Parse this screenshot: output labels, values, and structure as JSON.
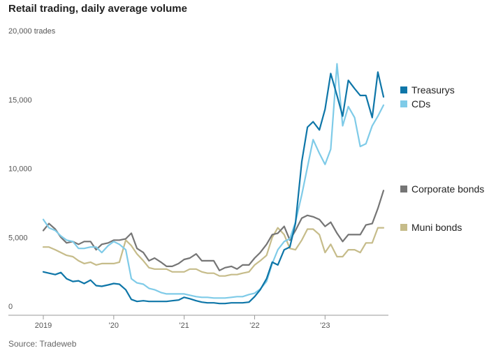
{
  "chart_data": {
    "type": "line",
    "title": "Retail trading, daily average volume",
    "source": "Source: Tradeweb",
    "ylim": [
      0,
      20000
    ],
    "y_ticks": [
      0,
      5000,
      10000,
      15000,
      20000
    ],
    "y_tick_labels": [
      "0",
      "5,000",
      "10,000",
      "15,000",
      "20,000 trades"
    ],
    "x_ticks": [
      2019,
      2020,
      2021,
      2022,
      2023
    ],
    "x_tick_labels": [
      "2019",
      "'20",
      "'21",
      "'22",
      "'23"
    ],
    "xlim": [
      2019,
      2023.86
    ],
    "grid": false,
    "legend_placement": "right, next to line ends",
    "series": [
      {
        "name": "Treasurys",
        "color": "#0e76a8",
        "x": [
          2019.0,
          2019.08,
          2019.17,
          2019.25,
          2019.33,
          2019.42,
          2019.5,
          2019.58,
          2019.67,
          2019.75,
          2019.83,
          2019.92,
          2020.0,
          2020.08,
          2020.17,
          2020.25,
          2020.33,
          2020.42,
          2020.5,
          2020.58,
          2020.67,
          2020.75,
          2020.83,
          2020.92,
          2021.0,
          2021.08,
          2021.17,
          2021.25,
          2021.33,
          2021.42,
          2021.5,
          2021.58,
          2021.67,
          2021.75,
          2021.83,
          2021.92,
          2022.0,
          2022.08,
          2022.17,
          2022.25,
          2022.33,
          2022.42,
          2022.5,
          2022.58,
          2022.67,
          2022.75,
          2022.83,
          2022.92,
          2023.0,
          2023.08,
          2023.17,
          2023.25,
          2023.33,
          2023.42,
          2023.5,
          2023.58,
          2023.67,
          2023.75,
          2023.83
        ],
        "values": [
          3000,
          2900,
          2800,
          2950,
          2500,
          2300,
          2350,
          2150,
          2400,
          2000,
          1950,
          2050,
          2150,
          2100,
          1700,
          1000,
          850,
          900,
          850,
          850,
          850,
          850,
          900,
          950,
          1150,
          1050,
          900,
          800,
          750,
          750,
          700,
          700,
          750,
          750,
          750,
          800,
          1200,
          1700,
          2500,
          3700,
          3500,
          4600,
          4800,
          6500,
          11000,
          13500,
          13900,
          13300,
          14800,
          17400,
          15800,
          14300,
          16900,
          16300,
          15800,
          15800,
          14200,
          17500,
          15700
        ]
      },
      {
        "name": "CDs",
        "color": "#7fcbe8",
        "x": [
          2019.0,
          2019.08,
          2019.17,
          2019.25,
          2019.33,
          2019.42,
          2019.5,
          2019.58,
          2019.67,
          2019.75,
          2019.83,
          2019.92,
          2020.0,
          2020.08,
          2020.17,
          2020.25,
          2020.33,
          2020.42,
          2020.5,
          2020.58,
          2020.67,
          2020.75,
          2020.83,
          2020.92,
          2021.0,
          2021.08,
          2021.17,
          2021.25,
          2021.33,
          2021.42,
          2021.5,
          2021.58,
          2021.67,
          2021.75,
          2021.83,
          2021.92,
          2022.0,
          2022.08,
          2022.17,
          2022.25,
          2022.33,
          2022.42,
          2022.5,
          2022.58,
          2022.67,
          2022.75,
          2022.83,
          2022.92,
          2023.0,
          2023.08,
          2023.17,
          2023.25,
          2023.33,
          2023.42,
          2023.5,
          2023.58,
          2023.67,
          2023.75,
          2023.83
        ],
        "values": [
          6800,
          6200,
          6000,
          5600,
          5300,
          5200,
          4700,
          4700,
          4800,
          4800,
          4400,
          4900,
          5200,
          5000,
          4600,
          2500,
          2200,
          2100,
          1800,
          1700,
          1500,
          1400,
          1400,
          1400,
          1400,
          1300,
          1200,
          1150,
          1150,
          1100,
          1100,
          1100,
          1150,
          1200,
          1200,
          1350,
          1450,
          1750,
          2300,
          3600,
          4600,
          5200,
          5400,
          6600,
          8600,
          10600,
          12600,
          11600,
          10800,
          11900,
          18100,
          13600,
          15000,
          14200,
          12100,
          12300,
          13600,
          14300,
          15100
        ]
      },
      {
        "name": "Corporate bonds",
        "color": "#757575",
        "x": [
          2019.0,
          2019.08,
          2019.17,
          2019.25,
          2019.33,
          2019.42,
          2019.5,
          2019.58,
          2019.67,
          2019.75,
          2019.83,
          2019.92,
          2020.0,
          2020.08,
          2020.17,
          2020.25,
          2020.33,
          2020.42,
          2020.5,
          2020.58,
          2020.67,
          2020.75,
          2020.83,
          2020.92,
          2021.0,
          2021.08,
          2021.17,
          2021.25,
          2021.33,
          2021.42,
          2021.5,
          2021.58,
          2021.67,
          2021.75,
          2021.83,
          2021.92,
          2022.0,
          2022.08,
          2022.17,
          2022.25,
          2022.33,
          2022.42,
          2022.5,
          2022.58,
          2022.67,
          2022.75,
          2022.83,
          2022.92,
          2023.0,
          2023.08,
          2023.17,
          2023.25,
          2023.33,
          2023.42,
          2023.5,
          2023.58,
          2023.67,
          2023.75,
          2023.83
        ],
        "values": [
          6000,
          6500,
          6100,
          5500,
          5100,
          5200,
          5000,
          5200,
          5200,
          4600,
          5000,
          5100,
          5300,
          5300,
          5400,
          5800,
          4700,
          4400,
          3800,
          4000,
          3700,
          3400,
          3400,
          3600,
          3900,
          4000,
          4300,
          3800,
          3800,
          3800,
          3100,
          3300,
          3400,
          3200,
          3500,
          3500,
          4000,
          4400,
          5000,
          5700,
          5800,
          6300,
          5300,
          6000,
          6900,
          7100,
          7000,
          6800,
          6300,
          6600,
          5800,
          5200,
          5700,
          5700,
          5700,
          6400,
          6500,
          7600,
          8900
        ]
      },
      {
        "name": "Muni bonds",
        "color": "#c6bc8a",
        "x": [
          2019.0,
          2019.08,
          2019.17,
          2019.25,
          2019.33,
          2019.42,
          2019.5,
          2019.58,
          2019.67,
          2019.75,
          2019.83,
          2019.92,
          2020.0,
          2020.08,
          2020.17,
          2020.25,
          2020.33,
          2020.42,
          2020.5,
          2020.58,
          2020.67,
          2020.75,
          2020.83,
          2020.92,
          2021.0,
          2021.08,
          2021.17,
          2021.25,
          2021.33,
          2021.42,
          2021.5,
          2021.58,
          2021.67,
          2021.75,
          2021.83,
          2021.92,
          2022.0,
          2022.08,
          2022.17,
          2022.25,
          2022.33,
          2022.42,
          2022.5,
          2022.58,
          2022.67,
          2022.75,
          2022.83,
          2022.92,
          2023.0,
          2023.08,
          2023.17,
          2023.25,
          2023.33,
          2023.42,
          2023.5,
          2023.58,
          2023.67,
          2023.75,
          2023.83
        ],
        "values": [
          4800,
          4800,
          4600,
          4400,
          4200,
          4100,
          3800,
          3600,
          3700,
          3500,
          3600,
          3600,
          3600,
          3700,
          5300,
          4900,
          4300,
          3800,
          3300,
          3200,
          3200,
          3200,
          3000,
          3000,
          3000,
          3200,
          3200,
          3000,
          2900,
          2900,
          2700,
          2700,
          2800,
          2800,
          2900,
          3000,
          3500,
          3800,
          4200,
          5500,
          6200,
          5700,
          4700,
          4600,
          5300,
          6100,
          6100,
          5700,
          4400,
          5000,
          4100,
          4100,
          4600,
          4600,
          4400,
          5100,
          5100,
          6200,
          6200
        ]
      }
    ]
  }
}
